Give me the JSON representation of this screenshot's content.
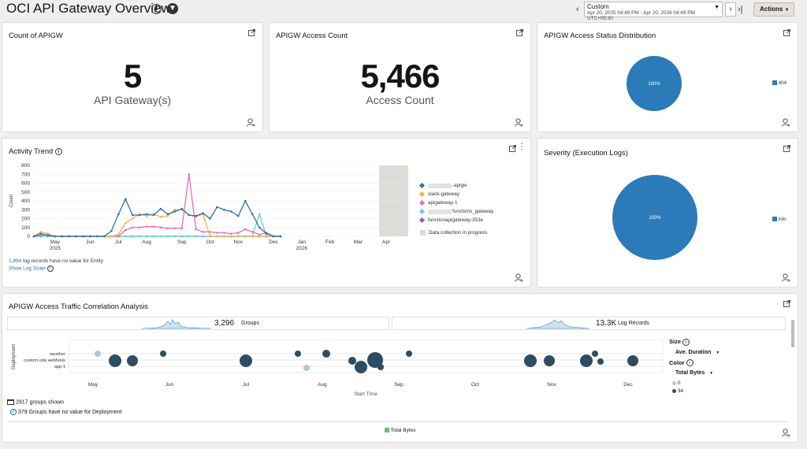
{
  "header": {
    "title": "OCI API Gateway Overview",
    "info_icon": "info-icon",
    "filter_icon": "filter-icon",
    "time_range": {
      "label": "Custom",
      "value": "Apr 20, 2025 04:49 PM - Apr 20, 2026 04:49 PM UTC+05:30"
    },
    "actions_label": "Actions"
  },
  "cards": {
    "count_apigw": {
      "title": "Count of APIGW",
      "value": "5",
      "subtitle": "API Gateway(s)"
    },
    "access_count": {
      "title": "APIGW Access Count",
      "value": "5,466",
      "subtitle": "Access Count"
    },
    "status_dist": {
      "title": "APIGW Access Status Distribution",
      "slice_label": "100%",
      "legend": "404",
      "color": "#2b7bb9"
    },
    "activity": {
      "title": "Activity Trend",
      "note_count": "1,894",
      "note_text": " log records have no value for Entity",
      "log_scale_link": "Show Log Scale",
      "legend": [
        {
          "name": "-apigw",
          "color": "#2c72a8"
        },
        {
          "name": "slack-gateway",
          "color": "#f0b24a"
        },
        {
          "name": "apigateway-1",
          "color": "#e36fb7"
        },
        {
          "name": "functions_gateway",
          "color": "#5fd6c8"
        },
        {
          "name": "functionapigateway-353e",
          "color": "#8e5ac9"
        },
        {
          "name": "Data collection in progress",
          "color": "#dedcd9"
        }
      ]
    },
    "severity": {
      "title": "Severity (Execution Logs)",
      "slice_label": "100%",
      "legend": "info",
      "color": "#2b7bb9"
    },
    "correlation": {
      "title": "APIGW Access Traffic Correlation Analysis",
      "groups_value": "3,296",
      "groups_label": "Groups",
      "records_value": "13.3K",
      "records_label": "Log Records",
      "y_axis": "Deployment",
      "rows": [
        "weather",
        "custom oda webhook",
        "app-1"
      ],
      "x_axis": "Start Time",
      "months": [
        "May",
        "Jun",
        "Jul",
        "Aug",
        "Sep",
        "Oct",
        "Nov",
        "Dec"
      ],
      "size_label": "Size",
      "size_value": "Ave. Duration",
      "color_label": "Color",
      "color_value": "Total Bytes",
      "color_legend": [
        {
          "label": "0",
          "color": "#a9c9e0"
        },
        {
          "label": "34",
          "color": "#2d4d63"
        }
      ],
      "groups_shown": "2917 groups shown",
      "groups_novalue": "379 Groups have no value for Deployment",
      "bottom_legend": "Total Bytes",
      "bottom_legend_color": "#6cc470"
    }
  },
  "chart_data": {
    "type": "line",
    "title": "Activity Trend",
    "xlabel": "",
    "ylabel": "Count",
    "ylim": [
      0,
      800
    ],
    "yticks": [
      "800",
      "700",
      "600",
      "500",
      "400",
      "300",
      "200",
      "100",
      "0"
    ],
    "xticks": [
      {
        "label": "May",
        "sub": "2025",
        "week": 3
      },
      {
        "label": "Jun",
        "sub": "",
        "week": 8
      },
      {
        "label": "Jul",
        "sub": "",
        "week": 12
      },
      {
        "label": "Aug",
        "sub": "",
        "week": 16
      },
      {
        "label": "Sep",
        "sub": "",
        "week": 21
      },
      {
        "label": "Oct",
        "sub": "",
        "week": 25
      },
      {
        "label": "Nov",
        "sub": "",
        "week": 29
      },
      {
        "label": "Dec",
        "sub": "",
        "week": 34
      },
      {
        "label": "Jan",
        "sub": "2026",
        "week": 38
      },
      {
        "label": "Feb",
        "sub": "",
        "week": 42
      },
      {
        "label": "Mar",
        "sub": "",
        "week": 46
      },
      {
        "label": "Apr",
        "sub": "",
        "week": 50
      }
    ],
    "x": [
      0,
      1,
      2,
      3,
      4,
      5,
      6,
      7,
      8,
      9,
      10,
      11,
      12,
      13,
      14,
      15,
      16,
      17,
      18,
      19,
      20,
      21,
      22,
      23,
      24,
      25,
      26,
      27,
      28,
      29,
      30,
      31,
      32,
      33,
      34,
      35
    ],
    "series": [
      {
        "name": "-apigw",
        "values": [
          0,
          30,
          10,
          0,
          0,
          0,
          0,
          0,
          0,
          0,
          0,
          60,
          250,
          420,
          240,
          240,
          250,
          240,
          310,
          250,
          280,
          310,
          240,
          230,
          260,
          200,
          330,
          300,
          280,
          230,
          400,
          250,
          100,
          30,
          0,
          0
        ]
      },
      {
        "name": "slack-gateway",
        "values": [
          0,
          50,
          30,
          0,
          0,
          0,
          0,
          0,
          0,
          0,
          0,
          0,
          20,
          150,
          200,
          250,
          230,
          250,
          220,
          230,
          300,
          300,
          240,
          220,
          250,
          0,
          0,
          0,
          0,
          0,
          0,
          0,
          0,
          0,
          0,
          0
        ]
      },
      {
        "name": "apigateway-1",
        "values": [
          0,
          10,
          20,
          0,
          0,
          0,
          0,
          0,
          0,
          0,
          0,
          0,
          0,
          70,
          100,
          100,
          110,
          110,
          100,
          90,
          90,
          90,
          700,
          80,
          50,
          50,
          40,
          40,
          30,
          40,
          80,
          50,
          20,
          40,
          0,
          0
        ]
      },
      {
        "name": "functions_gateway",
        "values": [
          0,
          0,
          0,
          0,
          0,
          0,
          0,
          0,
          0,
          0,
          0,
          0,
          0,
          0,
          0,
          0,
          0,
          0,
          0,
          0,
          0,
          0,
          0,
          0,
          0,
          0,
          0,
          0,
          0,
          0,
          0,
          0,
          250,
          0,
          0,
          0
        ]
      },
      {
        "name": "functionapigateway-353e",
        "values": [
          0,
          0,
          0,
          0,
          0,
          0,
          0,
          0,
          0,
          0,
          0,
          0,
          0,
          0,
          0,
          0,
          0,
          0,
          0,
          0,
          0,
          0,
          0,
          0,
          0,
          0,
          0,
          0,
          0,
          0,
          0,
          0,
          0,
          0,
          0,
          0
        ]
      }
    ]
  }
}
